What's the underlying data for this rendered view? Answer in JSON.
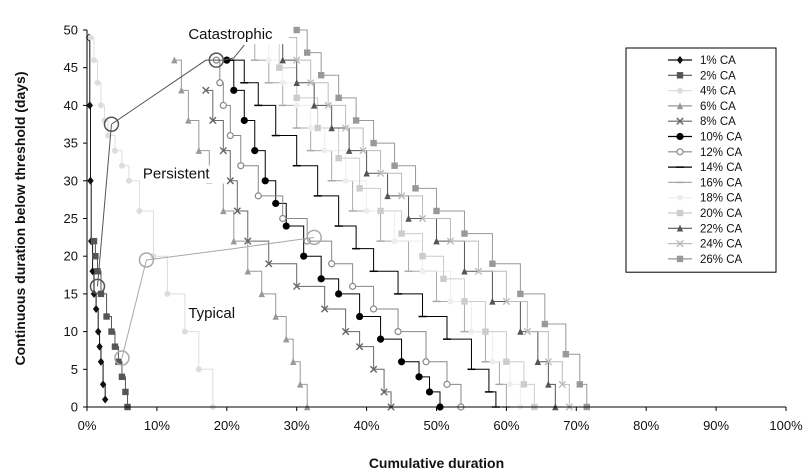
{
  "chart_data": {
    "type": "scatter",
    "title": "",
    "xlabel": "Cumulative duration",
    "ylabel": "Continuous duration below threshold (days)",
    "xlim": [
      0,
      100
    ],
    "ylim": [
      0,
      50
    ],
    "x_unit": "%",
    "x_ticks": [
      "0%",
      "10%",
      "20%",
      "30%",
      "40%",
      "50%",
      "60%",
      "70%",
      "80%",
      "90%",
      "100%"
    ],
    "y_ticks": [
      "0",
      "5",
      "10",
      "15",
      "20",
      "25",
      "30",
      "35",
      "40",
      "45",
      "50"
    ],
    "grid": false,
    "legend_position": "top-right",
    "series": [
      {
        "name": "1% CA",
        "color": "#111111",
        "marker": "diamond",
        "x": [
          0.3,
          0.4,
          0.5,
          0.6,
          0.8,
          1.0,
          1.3,
          1.6,
          1.8,
          2.0,
          2.3,
          2.6
        ],
        "y": [
          49,
          40,
          30,
          22,
          18,
          15,
          13,
          10,
          8,
          6,
          3,
          1
        ]
      },
      {
        "name": "2% CA",
        "color": "#555555",
        "marker": "square",
        "x": [
          1.0,
          1.2,
          1.5,
          2.0,
          2.8,
          3.5,
          4.0,
          4.5,
          5.0,
          5.5,
          5.8
        ],
        "y": [
          22,
          20,
          18,
          15,
          12,
          10,
          8,
          6,
          4,
          2,
          0
        ]
      },
      {
        "name": "4% CA",
        "color": "#dddddd",
        "marker": "circle",
        "x": [
          0.5,
          1.0,
          1.5,
          2.0,
          2.5,
          3.0,
          4.0,
          5.0,
          6.0,
          7.5,
          9.5,
          11.5,
          14.0,
          16.0,
          18.0
        ],
        "y": [
          49,
          46,
          43,
          40,
          38,
          36,
          34,
          32,
          30,
          26,
          20,
          15,
          10,
          5,
          0
        ]
      },
      {
        "name": "6% CA",
        "color": "#999999",
        "marker": "triangle",
        "x": [
          12.5,
          13.5,
          14.5,
          16.0,
          17.5,
          19.5,
          21.0,
          23.0,
          25.0,
          27.0,
          28.5,
          29.5,
          30.5,
          31.5
        ],
        "y": [
          46,
          42,
          38,
          34,
          30,
          26,
          22,
          18,
          15,
          12,
          9,
          6,
          3,
          0
        ]
      },
      {
        "name": "8% CA",
        "color": "#666666",
        "marker": "cross",
        "x": [
          17.0,
          18.0,
          19.5,
          20.5,
          21.5,
          23.0,
          26.0,
          30.0,
          34.0,
          37.0,
          39.0,
          41.0,
          42.5,
          43.5
        ],
        "y": [
          42,
          38,
          34,
          30,
          26,
          22,
          19,
          16,
          13,
          10,
          8,
          5,
          2,
          0
        ]
      },
      {
        "name": "10% CA",
        "color": "#000000",
        "marker": "dot",
        "x": [
          20.0,
          21.0,
          22.5,
          24.0,
          25.5,
          27.0,
          28.5,
          31.0,
          33.5,
          36.0,
          39.0,
          42.0,
          45.0,
          47.5,
          49.0,
          50.5
        ],
        "y": [
          46,
          42,
          38,
          34,
          30,
          27,
          24,
          20,
          17,
          15,
          12,
          9,
          6,
          4,
          2,
          0
        ]
      },
      {
        "name": "12% CA",
        "color": "#888888",
        "marker": "circle-open",
        "x": [
          18.5,
          19.0,
          19.5,
          20.5,
          22.0,
          24.5,
          28.0,
          31.5,
          35.0,
          38.0,
          41.0,
          44.5,
          48.5,
          51.5,
          53.5
        ],
        "y": [
          46,
          43,
          40,
          36,
          32,
          28,
          25,
          22,
          19,
          16,
          13,
          10,
          6,
          3,
          0
        ]
      },
      {
        "name": "14% CA",
        "color": "#000000",
        "marker": "line",
        "x": [
          20.5,
          22.5,
          24.5,
          27.0,
          30.0,
          33.0,
          36.0,
          38.5,
          41.0,
          44.5,
          48.0,
          51.5,
          55.0,
          57.5,
          58.5
        ],
        "y": [
          46,
          43,
          40,
          36,
          32,
          28,
          24,
          21,
          18,
          15,
          12,
          9,
          5,
          2,
          0
        ]
      },
      {
        "name": "16% CA",
        "color": "#aaaaaa",
        "marker": "line",
        "x": [
          22.0,
          24.0,
          26.0,
          28.0,
          30.0,
          32.0,
          35.0,
          38.0,
          42.0,
          46.0,
          50.0,
          54.0,
          57.0,
          59.0,
          60.0
        ],
        "y": [
          49,
          46,
          43,
          40,
          37,
          34,
          30,
          26,
          22,
          18,
          14,
          10,
          6,
          3,
          0
        ]
      },
      {
        "name": "18% CA",
        "color": "#eeeeee",
        "marker": "circle",
        "x": [
          24.0,
          26.0,
          28.0,
          30.0,
          32.0,
          34.0,
          37.0,
          40.0,
          44.0,
          48.0,
          52.0,
          55.0,
          58.0,
          60.5,
          62.0
        ],
        "y": [
          49,
          46,
          43,
          40,
          37,
          34,
          30,
          26,
          22,
          18,
          14,
          10,
          6,
          3,
          0
        ]
      },
      {
        "name": "20% CA",
        "color": "#cccccc",
        "marker": "square",
        "x": [
          25.0,
          27.5,
          30.0,
          33.0,
          36.0,
          39.0,
          42.0,
          45.0,
          48.0,
          51.0,
          54.0,
          57.0,
          60.0,
          62.5,
          64.0
        ],
        "y": [
          49,
          45,
          41,
          37,
          33,
          29,
          26,
          23,
          20,
          17,
          14,
          10,
          6,
          3,
          0
        ]
      },
      {
        "name": "22% CA",
        "color": "#555555",
        "marker": "triangle",
        "x": [
          26.0,
          28.0,
          30.0,
          32.5,
          35.0,
          37.5,
          40.0,
          43.0,
          46.0,
          50.0,
          54.0,
          58.0,
          62.0,
          64.5,
          66.0,
          67.0
        ],
        "y": [
          49,
          46,
          43,
          40,
          37,
          34,
          31,
          28,
          25,
          22,
          18,
          14,
          10,
          6,
          3,
          0
        ]
      },
      {
        "name": "24% CA",
        "color": "#bbbbbb",
        "marker": "cross",
        "x": [
          28.0,
          30.0,
          32.0,
          34.5,
          37.0,
          39.5,
          42.0,
          45.0,
          48.0,
          52.0,
          56.0,
          60.0,
          63.0,
          66.0,
          68.0,
          69.0
        ],
        "y": [
          49,
          46,
          43,
          40,
          37,
          34,
          31,
          28,
          25,
          22,
          18,
          14,
          10,
          6,
          3,
          0
        ]
      },
      {
        "name": "26% CA",
        "color": "#999999",
        "marker": "square",
        "x": [
          30.0,
          31.5,
          33.5,
          36.0,
          38.5,
          41.0,
          44.0,
          47.0,
          50.0,
          54.0,
          58.0,
          62.0,
          65.5,
          68.5,
          70.5,
          71.5
        ],
        "y": [
          50,
          47,
          44,
          41,
          38,
          35,
          32,
          29,
          26,
          23,
          19,
          15,
          11,
          7,
          3,
          0
        ]
      }
    ],
    "annotations": [
      {
        "text": "Catastrophic",
        "x": 14.5,
        "y": 48.8
      },
      {
        "text": "Persistent",
        "x": 8.0,
        "y": 30.3
      },
      {
        "text": "Typical",
        "x": 14.5,
        "y": 11.8
      }
    ],
    "threshold_curves": [
      {
        "name": "catastrophic",
        "color": "#555555",
        "x": [
          3.5,
          17.0,
          18.5,
          19.5,
          21.0,
          22.5
        ],
        "y": [
          37.5,
          46.0,
          46.0,
          46.0,
          46.3,
          48.0
        ],
        "circles": [
          [
            3.5,
            37.5
          ],
          [
            18.5,
            46.0
          ]
        ]
      },
      {
        "name": "persistent",
        "color": "#555555",
        "x": [
          1.5,
          3.5
        ],
        "y": [
          16.0,
          37.5
        ],
        "circles": [
          [
            1.5,
            16.0
          ]
        ]
      },
      {
        "name": "typical",
        "color": "#aaaaaa",
        "x": [
          5.0,
          8.5,
          21.0,
          32.5
        ],
        "y": [
          6.5,
          19.5,
          21.0,
          22.5
        ],
        "circles": [
          [
            5.0,
            6.5
          ],
          [
            8.5,
            19.5
          ],
          [
            32.5,
            22.5
          ]
        ]
      }
    ]
  }
}
